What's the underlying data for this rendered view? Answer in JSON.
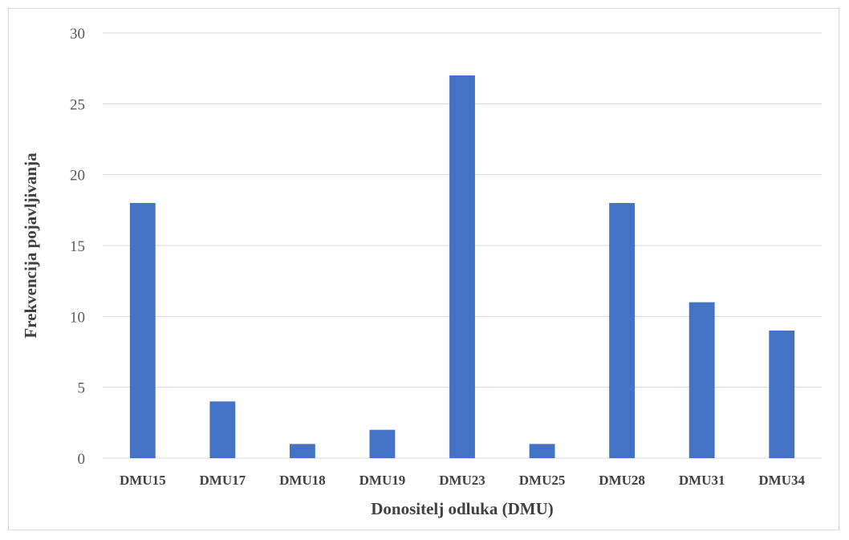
{
  "chart_data": {
    "type": "bar",
    "categories": [
      "DMU15",
      "DMU17",
      "DMU18",
      "DMU19",
      "DMU23",
      "DMU25",
      "DMU28",
      "DMU31",
      "DMU34"
    ],
    "values": [
      18,
      4,
      1,
      2,
      27,
      1,
      18,
      11,
      9
    ],
    "title": "",
    "xlabel": "Donositelj odluka (DMU)",
    "ylabel": "Frekvencija pojavljivanja",
    "ylim": [
      0,
      30
    ],
    "yticks": [
      0,
      5,
      10,
      15,
      20,
      25,
      30
    ],
    "grid": true,
    "legend": "none",
    "bar_color": "#4472c4",
    "grid_color": "#d9d9d9"
  }
}
